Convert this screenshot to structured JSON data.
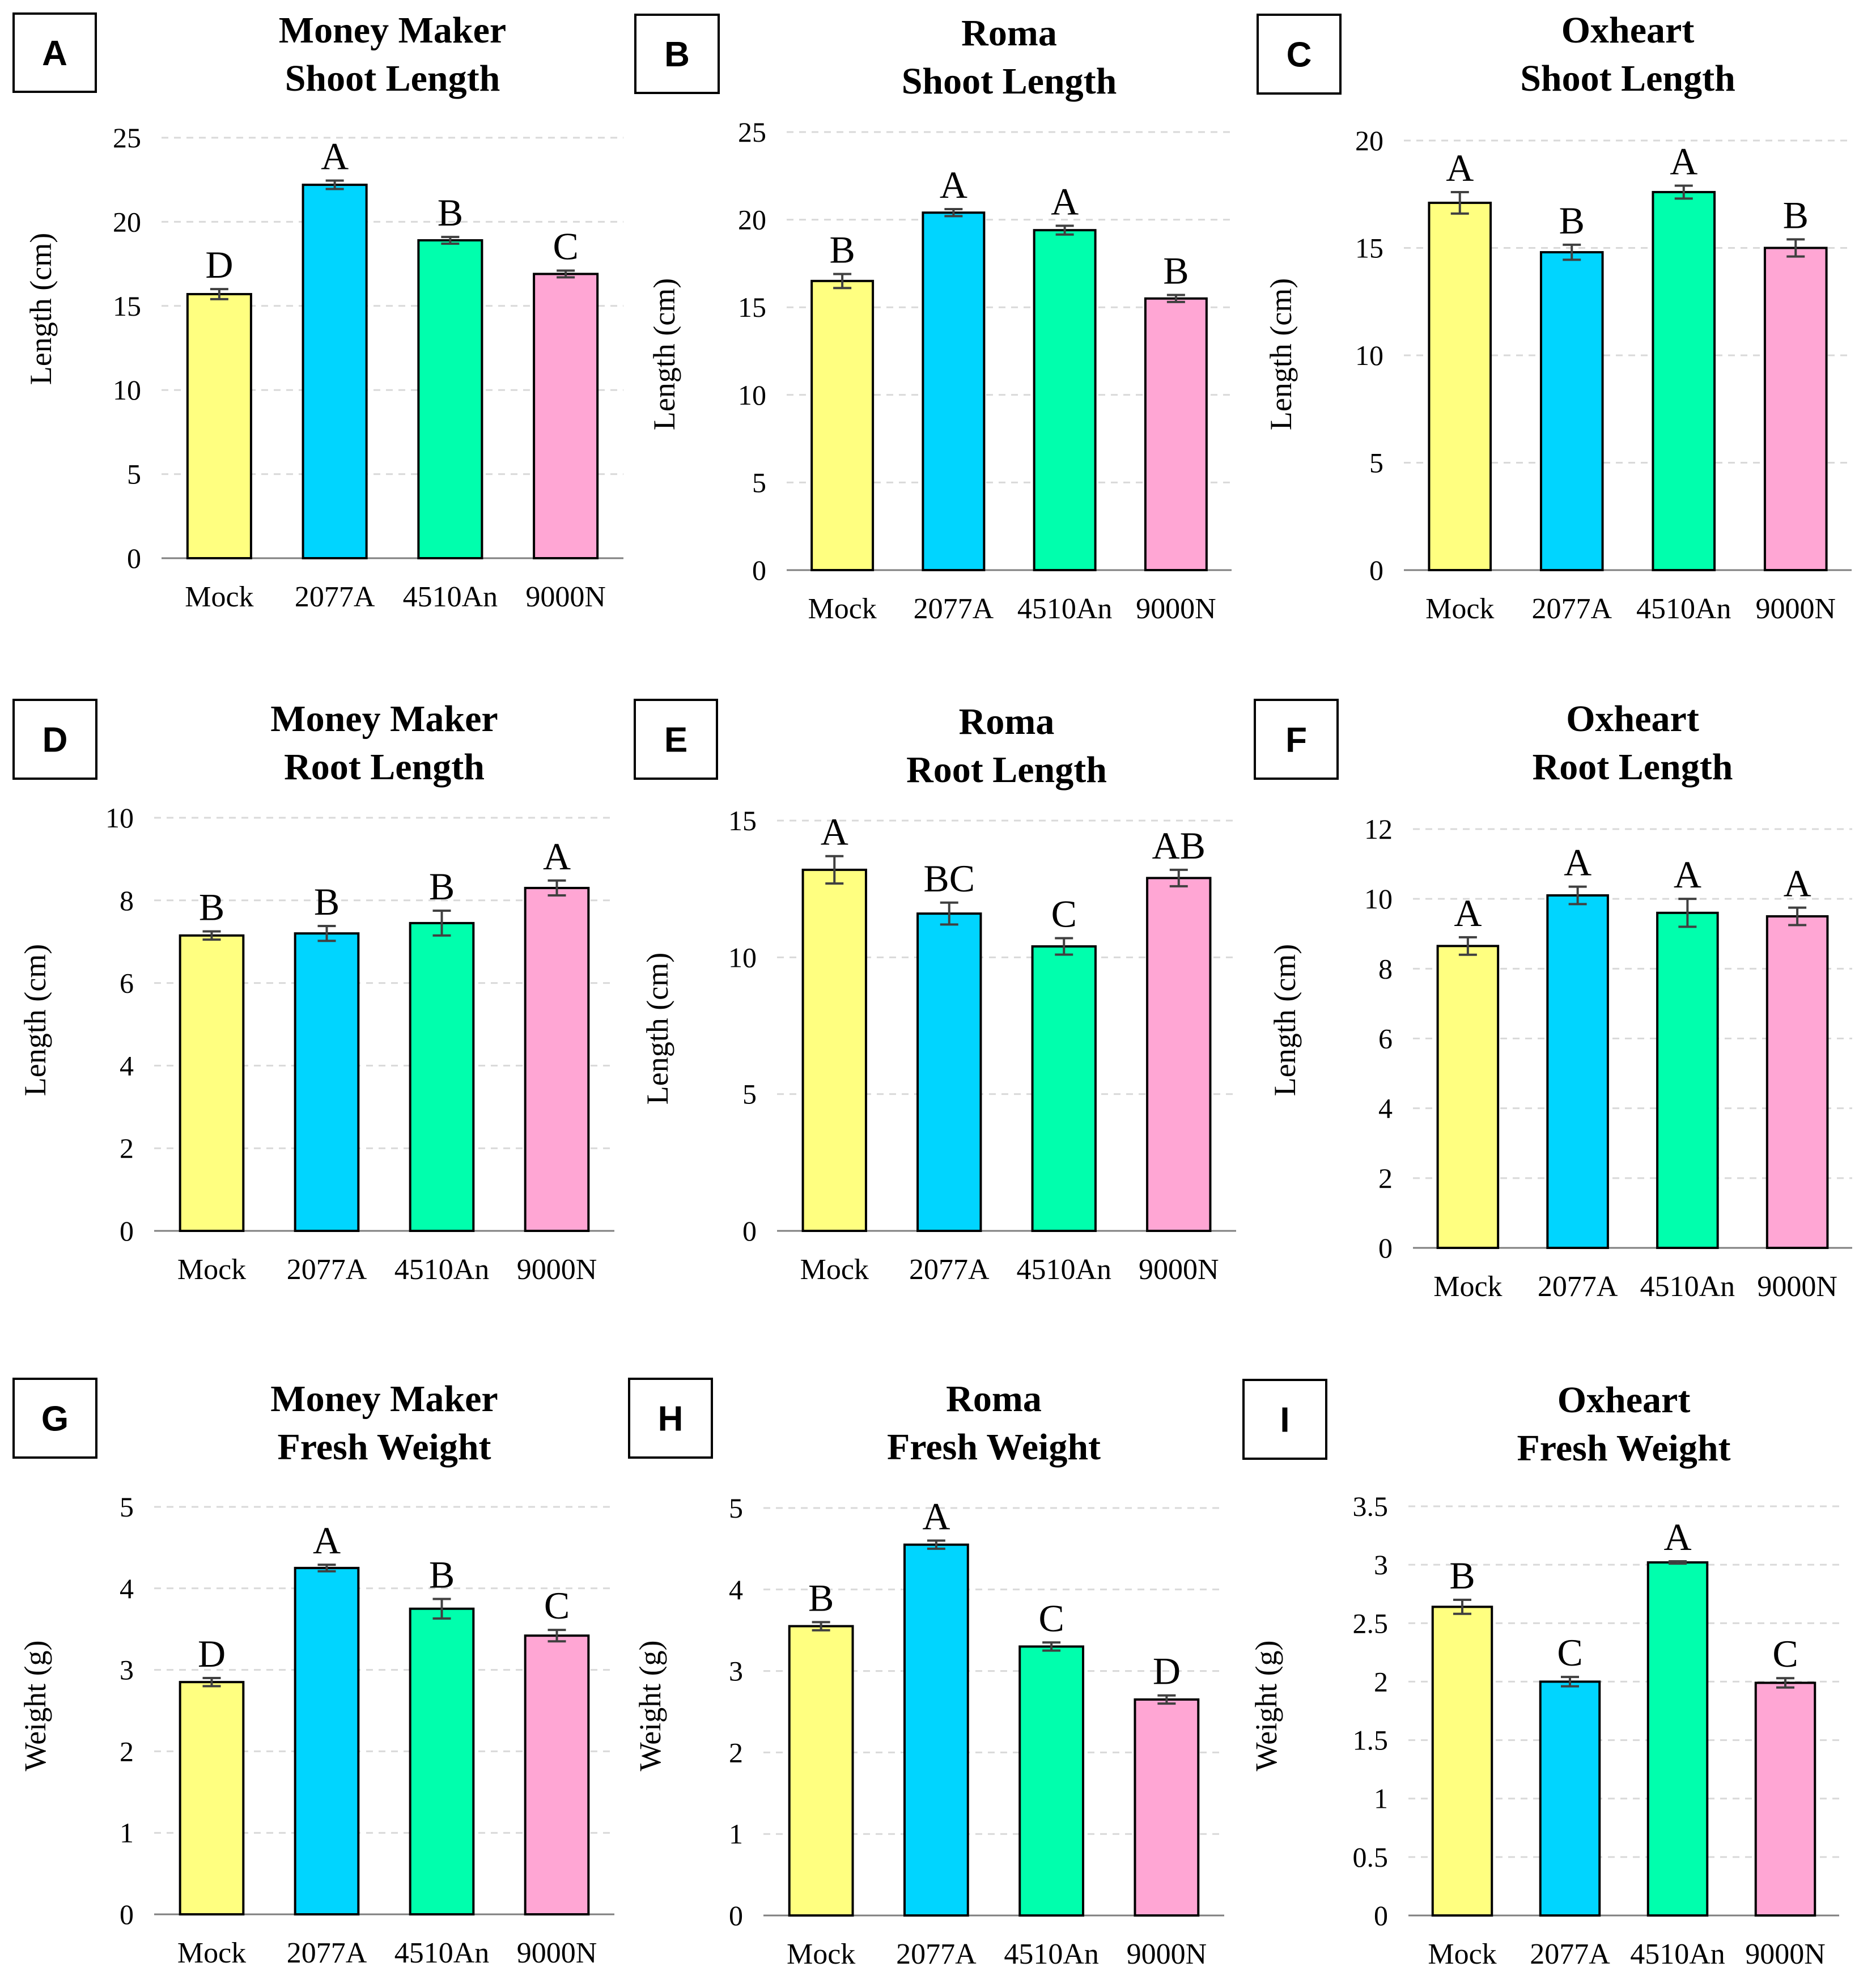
{
  "figure": {
    "colors": {
      "Mock": "#FFFF80",
      "2077A": "#00D5FF",
      "4510An": "#00FFAD",
      "9000N": "#FFA6D4",
      "grid": "#D9D9D9",
      "axis": "#7F7F7F",
      "bar_outline": "#000000",
      "text": "#000000"
    }
  },
  "chart_data": [
    {
      "panel": "A",
      "type": "bar",
      "title": [
        "Money Maker",
        "Shoot Length"
      ],
      "ylabel": "Length (cm)",
      "xlabel": "",
      "categories": [
        "Mock",
        "2077A",
        "4510An",
        "9000N"
      ],
      "values": [
        15.7,
        22.2,
        18.9,
        16.9
      ],
      "errors": [
        0.3,
        0.25,
        0.2,
        0.2
      ],
      "letters": [
        "D",
        "A",
        "B",
        "C"
      ],
      "ylim": [
        0,
        25
      ],
      "yticks": [
        0,
        5,
        10,
        15,
        20,
        25
      ],
      "ytick_labels": [
        "0",
        "5",
        "10",
        "15",
        "20",
        "25"
      ],
      "grid": true
    },
    {
      "panel": "B",
      "type": "bar",
      "title": [
        "Roma",
        "Shoot Length"
      ],
      "ylabel": "Length (cm)",
      "xlabel": "",
      "categories": [
        "Mock",
        "2077A",
        "4510An",
        "9000N"
      ],
      "values": [
        16.5,
        20.4,
        19.4,
        15.5
      ],
      "errors": [
        0.4,
        0.2,
        0.25,
        0.2
      ],
      "letters": [
        "B",
        "A",
        "A",
        "B"
      ],
      "ylim": [
        0,
        25
      ],
      "yticks": [
        0,
        5,
        10,
        15,
        20,
        25
      ],
      "ytick_labels": [
        "0",
        "5",
        "10",
        "15",
        "20",
        "25"
      ],
      "grid": true
    },
    {
      "panel": "C",
      "type": "bar",
      "title": [
        "Oxheart",
        "Shoot Length"
      ],
      "ylabel": "Length (cm)",
      "xlabel": "",
      "categories": [
        "Mock",
        "2077A",
        "4510An",
        "9000N"
      ],
      "values": [
        17.1,
        14.8,
        17.6,
        15.0
      ],
      "errors": [
        0.5,
        0.35,
        0.3,
        0.4
      ],
      "letters": [
        "A",
        "B",
        "A",
        "B"
      ],
      "ylim": [
        0,
        20
      ],
      "yticks": [
        0,
        5,
        10,
        15,
        20
      ],
      "ytick_labels": [
        "0",
        "5",
        "10",
        "15",
        "20"
      ],
      "grid": true
    },
    {
      "panel": "D",
      "type": "bar",
      "title": [
        "Money Maker",
        "Root Length"
      ],
      "ylabel": "Length (cm)",
      "xlabel": "",
      "categories": [
        "Mock",
        "2077A",
        "4510An",
        "9000N"
      ],
      "values": [
        7.15,
        7.2,
        7.45,
        8.3
      ],
      "errors": [
        0.1,
        0.18,
        0.3,
        0.18
      ],
      "letters": [
        "B",
        "B",
        "B",
        "A"
      ],
      "ylim": [
        0,
        10
      ],
      "yticks": [
        0,
        2,
        4,
        6,
        8,
        10
      ],
      "ytick_labels": [
        "0",
        "2",
        "4",
        "6",
        "8",
        "10"
      ],
      "grid": true
    },
    {
      "panel": "E",
      "type": "bar",
      "title": [
        "Roma",
        "Root Length"
      ],
      "ylabel": "Length (cm)",
      "xlabel": "",
      "categories": [
        "Mock",
        "2077A",
        "4510An",
        "9000N"
      ],
      "values": [
        13.2,
        11.6,
        10.4,
        12.9
      ],
      "errors": [
        0.5,
        0.4,
        0.3,
        0.3
      ],
      "letters": [
        "A",
        "BC",
        "C",
        "AB"
      ],
      "ylim": [
        0,
        15
      ],
      "yticks": [
        0,
        5,
        10,
        15
      ],
      "ytick_labels": [
        "0",
        "5",
        "10",
        "15"
      ],
      "grid": true
    },
    {
      "panel": "F",
      "type": "bar",
      "title": [
        "Oxheart",
        "Root Length"
      ],
      "ylabel": "Length (cm)",
      "xlabel": "",
      "categories": [
        "Mock",
        "2077A",
        "4510An",
        "9000N"
      ],
      "values": [
        8.65,
        10.1,
        9.6,
        9.5
      ],
      "errors": [
        0.25,
        0.25,
        0.4,
        0.25
      ],
      "letters": [
        "A",
        "A",
        "A",
        "A"
      ],
      "ylim": [
        0,
        12
      ],
      "yticks": [
        0,
        2,
        4,
        6,
        8,
        10,
        12
      ],
      "ytick_labels": [
        "0",
        "2",
        "4",
        "6",
        "8",
        "10",
        "12"
      ],
      "grid": true
    },
    {
      "panel": "G",
      "type": "bar",
      "title": [
        "Money Maker",
        "Fresh Weight"
      ],
      "ylabel": "Weight (g)",
      "xlabel": "",
      "categories": [
        "Mock",
        "2077A",
        "4510An",
        "9000N"
      ],
      "values": [
        2.85,
        4.25,
        3.75,
        3.42
      ],
      "errors": [
        0.05,
        0.04,
        0.12,
        0.07
      ],
      "letters": [
        "D",
        "A",
        "B",
        "C"
      ],
      "ylim": [
        0,
        5
      ],
      "yticks": [
        0,
        1,
        2,
        3,
        4,
        5
      ],
      "ytick_labels": [
        "0",
        "1",
        "2",
        "3",
        "4",
        "5"
      ],
      "grid": true
    },
    {
      "panel": "H",
      "type": "bar",
      "title": [
        "Roma",
        "Fresh Weight"
      ],
      "ylabel": "Weight (g)",
      "xlabel": "",
      "categories": [
        "Mock",
        "2077A",
        "4510An",
        "9000N"
      ],
      "values": [
        3.55,
        4.55,
        3.3,
        2.65
      ],
      "errors": [
        0.05,
        0.05,
        0.05,
        0.05
      ],
      "letters": [
        "B",
        "A",
        "C",
        "D"
      ],
      "ylim": [
        0,
        5
      ],
      "yticks": [
        0,
        1,
        2,
        3,
        4,
        5
      ],
      "ytick_labels": [
        "0",
        "1",
        "2",
        "3",
        "4",
        "5"
      ],
      "grid": true
    },
    {
      "panel": "I",
      "type": "bar",
      "title": [
        "Oxheart",
        "Fresh Weight"
      ],
      "ylabel": "Weight (g)",
      "xlabel": "",
      "categories": [
        "Mock",
        "2077A",
        "4510An",
        "9000N"
      ],
      "values": [
        2.64,
        2.0,
        3.02,
        1.99
      ],
      "errors": [
        0.06,
        0.04,
        0.01,
        0.04
      ],
      "letters": [
        "B",
        "C",
        "A",
        "C"
      ],
      "ylim": [
        0,
        3.5
      ],
      "yticks": [
        0,
        0.5,
        1,
        1.5,
        2,
        2.5,
        3,
        3.5
      ],
      "ytick_labels": [
        "0",
        "0.5",
        "1",
        "1.5",
        "2",
        "2.5",
        "3",
        "3.5"
      ],
      "grid": true
    }
  ]
}
